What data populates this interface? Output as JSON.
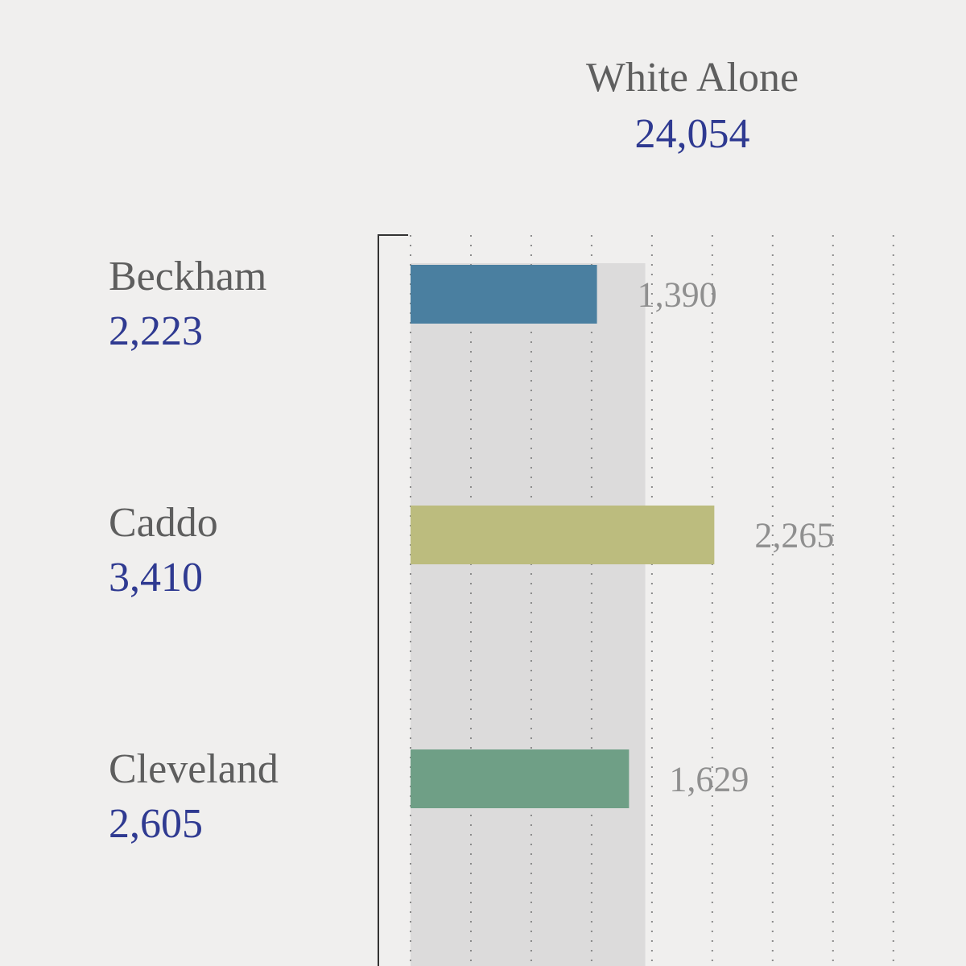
{
  "chart_data": {
    "type": "bar",
    "orientation": "horizontal",
    "title": "White Alone",
    "title_value": "24,054",
    "categories": [
      "Beckham",
      "Caddo",
      "Cleveland"
    ],
    "category_totals": [
      "2,223",
      "3,410",
      "2,605"
    ],
    "values": [
      1390,
      2265,
      1629
    ],
    "value_labels": [
      "1,390",
      "2,265",
      "1,629"
    ],
    "colors": [
      "#4a7fa0",
      "#bcbc7e",
      "#6f9f86"
    ],
    "xlim": [
      0,
      4000
    ],
    "gridlines": [
      0,
      450,
      900,
      1350,
      1800,
      2250,
      2700,
      3150,
      3600
    ],
    "reference_band": [
      0,
      1750
    ],
    "grid": true
  },
  "header": {
    "title": "White Alone",
    "value": "24,054"
  }
}
